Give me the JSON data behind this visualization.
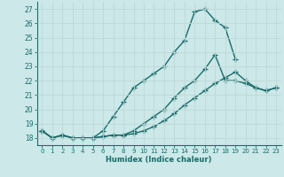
{
  "xlabel": "Humidex (Indice chaleur)",
  "ylabel": "",
  "bg_color": "#cce8e8",
  "grid_color": "#d4e8e8",
  "line_color": "#1a6b6b",
  "marker": "+",
  "markersize": 4,
  "linewidth": 1.0,
  "ylim": [
    17.5,
    27.5
  ],
  "xlim": [
    -0.5,
    23.5
  ],
  "yticks": [
    18,
    19,
    20,
    21,
    22,
    23,
    24,
    25,
    26,
    27
  ],
  "xticks": [
    0,
    1,
    2,
    3,
    4,
    5,
    6,
    7,
    8,
    9,
    10,
    11,
    12,
    13,
    14,
    15,
    16,
    17,
    18,
    19,
    20,
    21,
    22,
    23
  ],
  "series": [
    [
      18.5,
      18.0,
      18.2,
      18.0,
      18.0,
      18.0,
      18.5,
      19.5,
      20.5,
      21.5,
      22.0,
      22.5,
      23.0,
      24.0,
      24.8,
      26.8,
      27.0,
      26.2,
      25.7,
      23.5,
      null,
      null,
      null,
      null
    ],
    [
      18.5,
      18.0,
      18.2,
      18.0,
      18.0,
      18.0,
      18.1,
      18.2,
      18.2,
      18.5,
      19.0,
      19.5,
      20.0,
      20.8,
      21.5,
      22.0,
      22.8,
      23.8,
      22.0,
      22.0,
      21.8,
      21.5,
      21.3,
      21.5
    ],
    [
      18.5,
      18.0,
      18.2,
      18.0,
      18.0,
      18.0,
      18.1,
      18.2,
      18.2,
      18.3,
      18.5,
      18.8,
      19.2,
      19.7,
      20.3,
      20.8,
      21.3,
      21.8,
      22.2,
      22.6,
      22.0,
      21.5,
      21.3,
      21.5
    ]
  ]
}
